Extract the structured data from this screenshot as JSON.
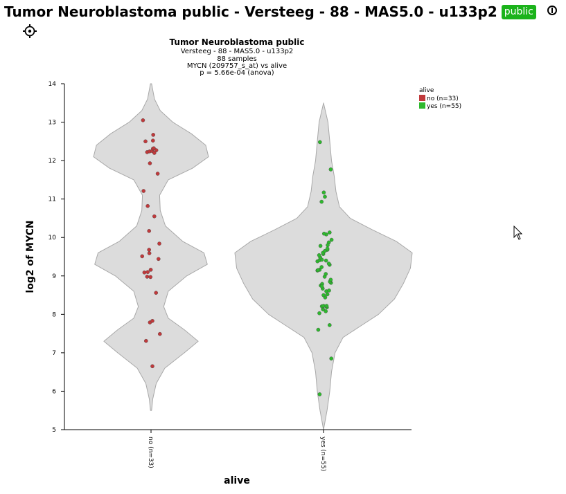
{
  "header": {
    "title": "Tumor Neuroblastoma public - Versteeg - 88 - MAS5.0 - u133p2",
    "badge": "public",
    "settings_icon": "gear-icon",
    "info_icon": "info-icon",
    "badge_color": "#1bb31b"
  },
  "chart_data": {
    "type": "violin",
    "title": "Tumor Neuroblastoma public",
    "subtitle_lines": [
      "Versteeg - 88 - MAS5.0 - u133p2",
      "88 samples",
      "MYCN (209757_s_at) vs alive",
      "p = 5.66e-04 (anova)"
    ],
    "xlabel": "alive",
    "ylabel": "log2 of MYCN",
    "ylim": [
      5,
      14
    ],
    "yticks": [
      "5",
      "6",
      "7",
      "8",
      "9",
      "10",
      "11",
      "12",
      "13",
      "14"
    ],
    "categories": [
      "no (n=33)",
      "yes (n=55)"
    ],
    "legend": {
      "title": "alive",
      "position": "top-right",
      "entries": [
        "no (n=33)",
        "yes (n=55)"
      ]
    },
    "series": [
      {
        "name": "no (n=33)",
        "color": "#c0393b",
        "violin_range": [
          5.5,
          14.0
        ],
        "density": [
          [
            5.5,
            0.01
          ],
          [
            5.8,
            0.03
          ],
          [
            6.2,
            0.09
          ],
          [
            6.6,
            0.24
          ],
          [
            7.0,
            0.58
          ],
          [
            7.3,
            0.82
          ],
          [
            7.6,
            0.58
          ],
          [
            7.9,
            0.3
          ],
          [
            8.2,
            0.22
          ],
          [
            8.6,
            0.3
          ],
          [
            9.0,
            0.62
          ],
          [
            9.3,
            0.98
          ],
          [
            9.6,
            0.92
          ],
          [
            9.9,
            0.55
          ],
          [
            10.3,
            0.25
          ],
          [
            10.7,
            0.16
          ],
          [
            11.1,
            0.15
          ],
          [
            11.5,
            0.3
          ],
          [
            11.8,
            0.72
          ],
          [
            12.1,
            1.0
          ],
          [
            12.4,
            0.95
          ],
          [
            12.7,
            0.7
          ],
          [
            13.0,
            0.38
          ],
          [
            13.3,
            0.16
          ],
          [
            13.6,
            0.06
          ],
          [
            14.0,
            0.01
          ]
        ],
        "values": [
          6.65,
          7.31,
          7.49,
          7.79,
          7.83,
          8.56,
          8.98,
          8.97,
          9.09,
          9.1,
          9.16,
          9.44,
          9.51,
          9.59,
          9.68,
          9.84,
          10.17,
          10.55,
          10.82,
          11.21,
          11.66,
          11.93,
          12.22,
          12.24,
          12.25,
          12.27,
          12.31,
          12.32,
          12.5,
          12.52,
          12.67,
          13.05,
          12.2
        ],
        "jitter": [
          0.05,
          -0.18,
          0.32,
          -0.04,
          0.05,
          0.18,
          -0.14,
          -0.02,
          -0.24,
          -0.12,
          -0.01,
          0.27,
          -0.32,
          -0.06,
          -0.07,
          0.3,
          -0.07,
          0.12,
          -0.12,
          -0.27,
          0.24,
          -0.04,
          -0.14,
          -0.05,
          0.04,
          0.19,
          0.07,
          0.1,
          -0.2,
          0.07,
          0.08,
          -0.29,
          0.12
        ]
      },
      {
        "name": "yes (n=55)",
        "color": "#2eb82e",
        "violin_range": [
          5.0,
          13.5
        ],
        "density": [
          [
            5.0,
            0.0
          ],
          [
            5.5,
            0.04
          ],
          [
            6.0,
            0.07
          ],
          [
            6.5,
            0.09
          ],
          [
            7.0,
            0.13
          ],
          [
            7.4,
            0.22
          ],
          [
            7.7,
            0.42
          ],
          [
            8.0,
            0.62
          ],
          [
            8.4,
            0.8
          ],
          [
            8.8,
            0.9
          ],
          [
            9.2,
            0.98
          ],
          [
            9.6,
            1.0
          ],
          [
            9.9,
            0.82
          ],
          [
            10.2,
            0.55
          ],
          [
            10.5,
            0.3
          ],
          [
            10.8,
            0.18
          ],
          [
            11.2,
            0.14
          ],
          [
            11.6,
            0.12
          ],
          [
            12.0,
            0.09
          ],
          [
            12.5,
            0.07
          ],
          [
            13.0,
            0.05
          ],
          [
            13.5,
            0.0
          ]
        ],
        "values": [
          5.92,
          6.85,
          7.6,
          7.72,
          8.03,
          8.08,
          8.13,
          8.18,
          8.19,
          8.21,
          8.22,
          8.44,
          8.52,
          8.6,
          8.62,
          8.67,
          8.75,
          8.79,
          8.82,
          8.85,
          8.9,
          8.98,
          9.14,
          9.16,
          9.23,
          9.29,
          9.32,
          9.38,
          9.4,
          9.41,
          9.42,
          9.48,
          9.54,
          9.57,
          9.6,
          9.68,
          9.71,
          9.78,
          9.87,
          9.94,
          10.08,
          10.1,
          10.13,
          10.93,
          11.06,
          11.17,
          11.77,
          12.48,
          9.15,
          8.22,
          8.5,
          9.05,
          9.8,
          9.65,
          8.73
        ],
        "jitter": [
          -0.14,
          0.28,
          -0.19,
          0.22,
          -0.15,
          0.08,
          -0.02,
          0.12,
          -0.03,
          -0.06,
          0.0,
          0.06,
          0.14,
          0.1,
          0.2,
          -0.03,
          -0.1,
          -0.05,
          0.27,
          0.23,
          0.26,
          0.04,
          -0.22,
          -0.14,
          -0.07,
          0.22,
          0.19,
          -0.22,
          0.09,
          -0.14,
          -0.06,
          -0.12,
          -0.16,
          -0.01,
          -0.02,
          0.14,
          0.14,
          -0.11,
          0.19,
          0.29,
          0.1,
          0.02,
          0.22,
          -0.07,
          0.05,
          0.01,
          0.26,
          -0.13,
          -0.2,
          0.11,
          0.0,
          0.08,
          0.15,
          0.05,
          -0.06
        ]
      }
    ]
  }
}
